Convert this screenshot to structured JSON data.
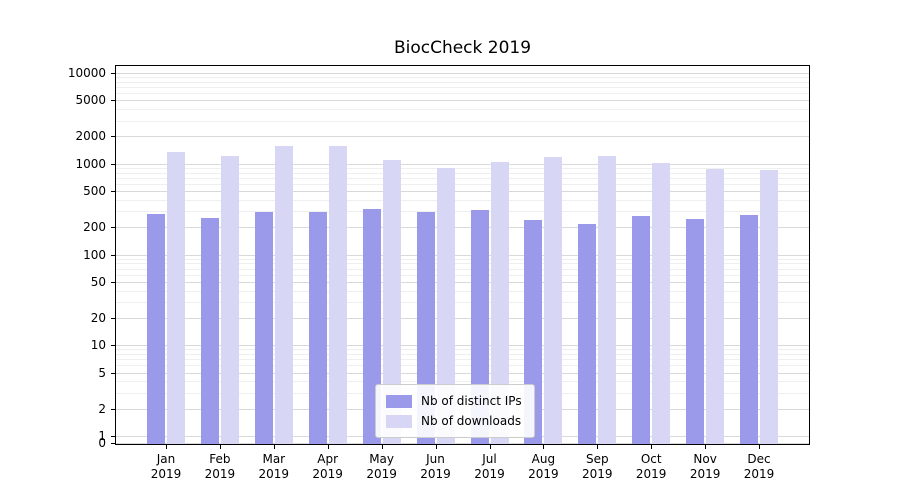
{
  "chart_data": {
    "type": "bar",
    "title": "BiocCheck 2019",
    "scale": "symlog",
    "categories": [
      "Jan 2019",
      "Feb 2019",
      "Mar 2019",
      "Apr 2019",
      "May 2019",
      "Jun 2019",
      "Jul 2019",
      "Aug 2019",
      "Sep 2019",
      "Oct 2019",
      "Nov 2019",
      "Dec 2019"
    ],
    "series": [
      {
        "name": "Nb of distinct IPs",
        "color": "#9a99ea",
        "values": [
          285,
          258,
          300,
          305,
          325,
          305,
          315,
          245,
          220,
          272,
          252,
          282
        ]
      },
      {
        "name": "Nb of downloads",
        "color": "#d7d6f5",
        "values": [
          1400,
          1250,
          1620,
          1620,
          1130,
          920,
          1080,
          1230,
          1250,
          1050,
          910,
          880
        ]
      }
    ],
    "yticks": [
      0,
      1,
      2,
      5,
      10,
      20,
      50,
      100,
      200,
      500,
      1000,
      2000,
      5000,
      10000
    ],
    "ylim": [
      0,
      10500
    ],
    "xlabel": "",
    "ylabel": "",
    "grid": true,
    "legend_position": "lower center"
  }
}
